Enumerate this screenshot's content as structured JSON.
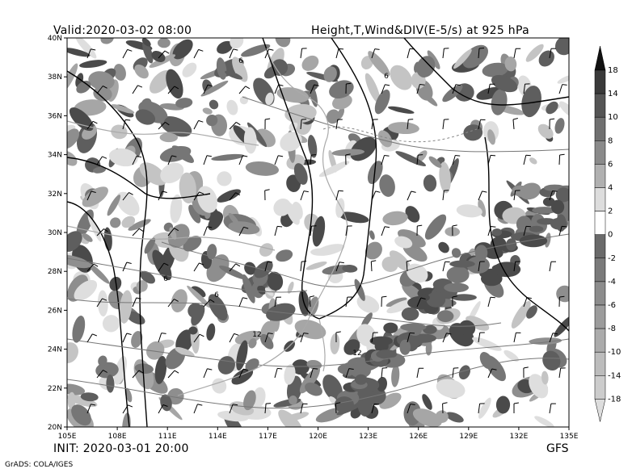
{
  "header": {
    "valid": "Valid:2020-03-02 08:00",
    "title": "Height,T,Wind&DIV(E-5/s) at 925 hPa"
  },
  "footer": {
    "init": "INIT: 2020-03-01 20:00",
    "model": "GFS",
    "credit": "GrADS: COLA/IGES"
  },
  "map": {
    "lon_labels": [
      "105E",
      "108E",
      "111E",
      "114E",
      "117E",
      "120E",
      "123E",
      "126E",
      "129E",
      "132E",
      "135E"
    ],
    "lat_labels": [
      "40N",
      "38N",
      "36N",
      "34N",
      "32N",
      "30N",
      "28N",
      "26N",
      "24N",
      "22N",
      "20N"
    ],
    "lon_range": [
      105,
      135
    ],
    "lat_range": [
      20,
      40
    ],
    "contour_labels": [
      "6",
      "6",
      "6",
      "6",
      "12",
      "12"
    ]
  },
  "colorbar": {
    "levels": [
      "18",
      "14",
      "10",
      "8",
      "6",
      "4",
      "2",
      "0",
      "-2",
      "-4",
      "-6",
      "-8",
      "-10",
      "-14",
      "-18"
    ],
    "colors": [
      "#111111",
      "#3a3a3a",
      "#555555",
      "#707070",
      "#8a8a8a",
      "#b0b0b0",
      "#dddddd",
      "#ffffff",
      "#6a6a6a",
      "#7a7a7a",
      "#8c8c8c",
      "#9c9c9c",
      "#ababab",
      "#bcbcbc",
      "#cccccc"
    ]
  }
}
